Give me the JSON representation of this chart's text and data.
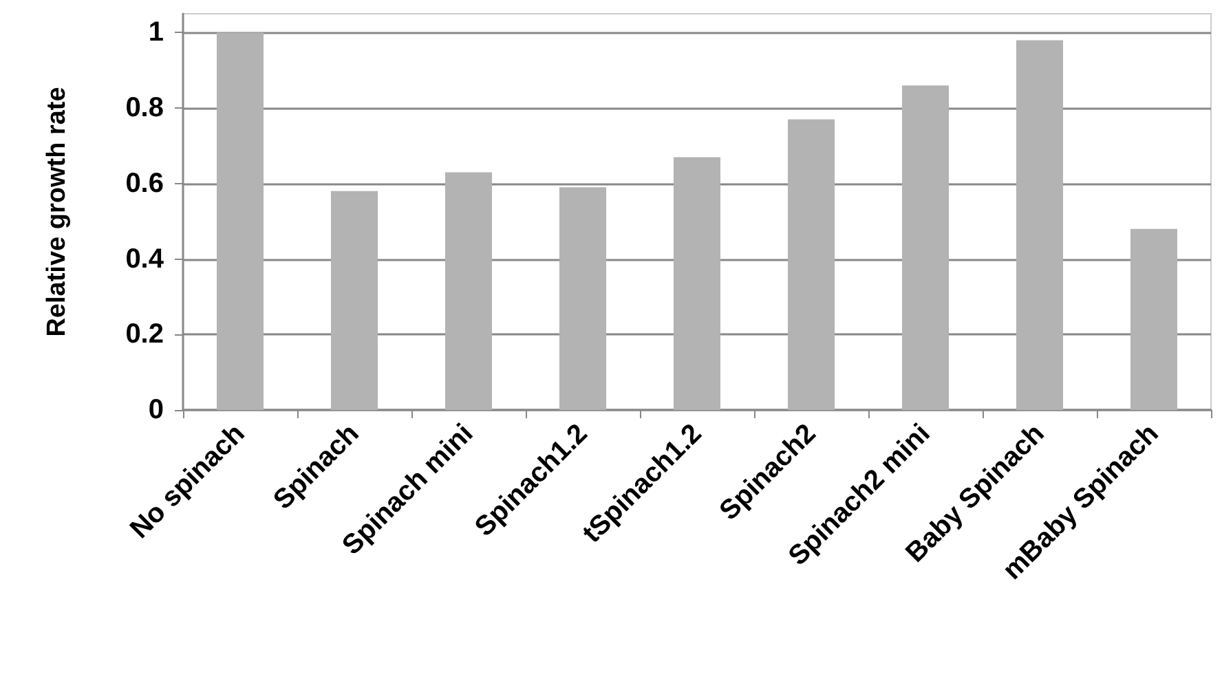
{
  "chart_data": {
    "type": "bar",
    "ylabel": "Relative growth rate",
    "categories": [
      "No spinach",
      "Spinach",
      "Spinach mini",
      "Spinach1.2",
      "tSpinach1.2",
      "Spinach2",
      "Spinach2 mini",
      "Baby Spinach",
      "mBaby Spinach"
    ],
    "values": [
      1.0,
      0.58,
      0.63,
      0.59,
      0.67,
      0.77,
      0.86,
      0.98,
      0.48
    ],
    "color": "#b3b3b3",
    "ylim": [
      0,
      1.05
    ],
    "yticks": [
      0,
      0.2,
      0.4,
      0.6,
      0.8,
      1
    ],
    "grid": "y"
  }
}
